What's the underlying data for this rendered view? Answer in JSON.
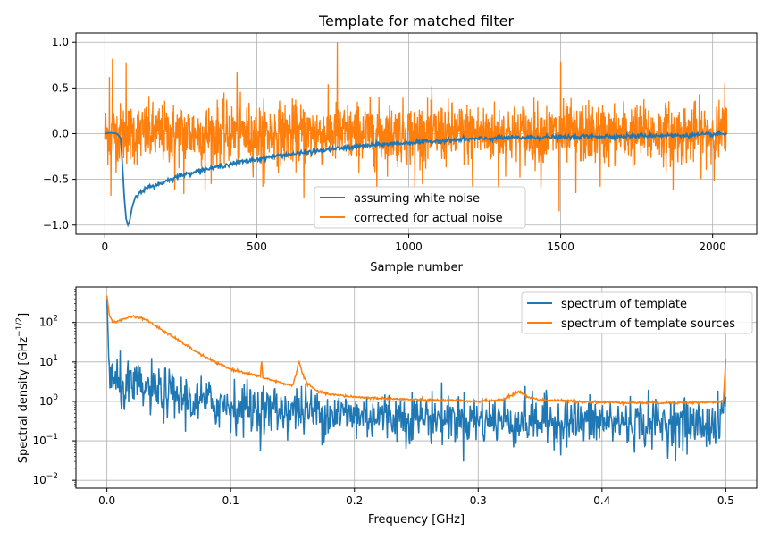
{
  "chart_data": [
    {
      "type": "line",
      "title": "Template for matched filter",
      "xlabel": "Sample number",
      "ylabel": "",
      "xlim": [
        -95,
        2145
      ],
      "ylim": [
        -1.1,
        1.1
      ],
      "xticks": [
        0,
        500,
        1000,
        1500,
        2000
      ],
      "yticks": [
        -1.0,
        -0.5,
        0.0,
        0.5,
        1.0
      ],
      "xtick_labels": [
        "0",
        "500",
        "1000",
        "1500",
        "2000"
      ],
      "ytick_labels": [
        "−1.0",
        "−0.5",
        "0.0",
        "0.5",
        "1.0"
      ],
      "grid": true,
      "legend_position": "bottom-center",
      "series": [
        {
          "name": "corrected for actual noise",
          "color": "#ff7f0e",
          "description": "dense noise-like trace around 0, amplitude mostly within ±0.4 with spikes",
          "x_range": [
            0,
            2047
          ],
          "amplitude_typical": 0.3,
          "spikes": [
            [
              15,
              0.62
            ],
            [
              20,
              -0.68
            ],
            [
              25,
              0.82
            ],
            [
              70,
              0.78
            ],
            [
              230,
              -0.62
            ],
            [
              260,
              -0.66
            ],
            [
              330,
              -0.62
            ],
            [
              435,
              0.68
            ],
            [
              520,
              -0.58
            ],
            [
              655,
              -0.7
            ],
            [
              765,
              1.0
            ],
            [
              895,
              -0.62
            ],
            [
              1020,
              -0.6
            ],
            [
              1210,
              -0.58
            ],
            [
              1295,
              -0.6
            ],
            [
              1435,
              -0.6
            ],
            [
              1500,
              0.79
            ],
            [
              1495,
              -0.85
            ],
            [
              1550,
              -0.65
            ],
            [
              1630,
              -0.58
            ],
            [
              1870,
              -0.62
            ],
            [
              2040,
              0.55
            ]
          ]
        },
        {
          "name": "assuming white noise",
          "color": "#1f77b4",
          "x": [
            0,
            20,
            40,
            52,
            58,
            64,
            70,
            76,
            82,
            90,
            100,
            110,
            125,
            140,
            160,
            180,
            200,
            230,
            260,
            300,
            350,
            400,
            450,
            500,
            550,
            600,
            650,
            700,
            750,
            800,
            900,
            1000,
            1100,
            1200,
            1300,
            1400,
            1500,
            1600,
            1700,
            1800,
            1900,
            2000,
            2047
          ],
          "values": [
            0.0,
            0.01,
            0.0,
            -0.05,
            -0.35,
            -0.7,
            -0.93,
            -1.0,
            -0.95,
            -0.8,
            -0.7,
            -0.66,
            -0.62,
            -0.59,
            -0.57,
            -0.55,
            -0.52,
            -0.48,
            -0.45,
            -0.41,
            -0.38,
            -0.34,
            -0.31,
            -0.28,
            -0.25,
            -0.23,
            -0.21,
            -0.19,
            -0.17,
            -0.15,
            -0.12,
            -0.1,
            -0.08,
            -0.06,
            -0.05,
            -0.04,
            -0.04,
            -0.03,
            -0.03,
            -0.02,
            -0.02,
            -0.01,
            0.0
          ]
        }
      ]
    },
    {
      "type": "line",
      "title": "",
      "xlabel": "Frequency [GHz]",
      "ylabel_prefix": "Spectral density [GHz",
      "ylabel_exponent": "−1/2",
      "ylabel_suffix": "]",
      "xlim": [
        -0.025,
        0.525
      ],
      "ylim_log10": [
        -2.2,
        2.9
      ],
      "yscale": "log",
      "xticks": [
        0.0,
        0.1,
        0.2,
        0.3,
        0.4,
        0.5
      ],
      "xtick_labels": [
        "0.0",
        "0.1",
        "0.2",
        "0.3",
        "0.4",
        "0.5"
      ],
      "yticks_log10": [
        -2,
        -1,
        0,
        1,
        2
      ],
      "ytick_mantissa": "10",
      "ytick_exponents": [
        "−2",
        "−1",
        "0",
        "1",
        "2"
      ],
      "grid": true,
      "legend_position": "top-right",
      "series": [
        {
          "name": "spectrum of template",
          "color": "#1f77b4",
          "description": "noisy spectrum falling from ~400 at 0 GHz to ~0.3 at 0.5 GHz, with spike to ~1.3 at 0.5 GHz",
          "x": [
            0.0,
            0.002,
            0.005,
            0.01,
            0.02,
            0.03,
            0.05,
            0.07,
            0.1,
            0.13,
            0.15,
            0.2,
            0.25,
            0.3,
            0.35,
            0.4,
            0.45,
            0.495,
            0.5
          ],
          "values": [
            400,
            5,
            3,
            2.5,
            2.2,
            2.0,
            1.5,
            1.0,
            0.8,
            0.6,
            0.6,
            0.45,
            0.4,
            0.35,
            0.32,
            0.3,
            0.28,
            0.25,
            1.3
          ]
        },
        {
          "name": "spectrum of template sources",
          "color": "#ff7f0e",
          "x": [
            0.0,
            0.002,
            0.005,
            0.01,
            0.02,
            0.03,
            0.04,
            0.05,
            0.06,
            0.07,
            0.08,
            0.09,
            0.1,
            0.11,
            0.12,
            0.124,
            0.125,
            0.126,
            0.13,
            0.14,
            0.15,
            0.153,
            0.155,
            0.158,
            0.162,
            0.17,
            0.18,
            0.2,
            0.22,
            0.25,
            0.28,
            0.3,
            0.32,
            0.333,
            0.34,
            0.35,
            0.38,
            0.4,
            0.43,
            0.46,
            0.49,
            0.498,
            0.5
          ],
          "values": [
            480,
            150,
            100,
            110,
            145,
            125,
            80,
            50,
            32,
            20,
            13,
            9,
            6.5,
            5.5,
            4.5,
            4.2,
            10.5,
            4.0,
            3.7,
            3.0,
            2.5,
            5,
            11,
            5,
            2.8,
            1.8,
            1.5,
            1.3,
            1.2,
            1.1,
            1.05,
            1.0,
            1.1,
            1.8,
            1.3,
            1.1,
            1.0,
            0.95,
            0.92,
            0.92,
            0.95,
            1.0,
            12
          ]
        }
      ]
    }
  ]
}
